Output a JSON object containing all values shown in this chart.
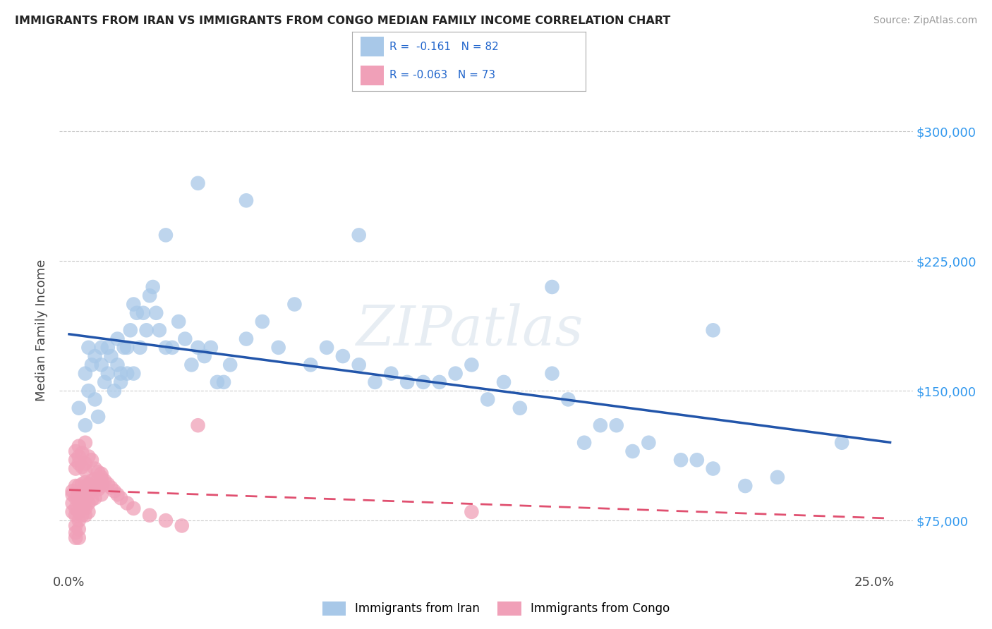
{
  "title": "IMMIGRANTS FROM IRAN VS IMMIGRANTS FROM CONGO MEDIAN FAMILY INCOME CORRELATION CHART",
  "source": "Source: ZipAtlas.com",
  "ylim": [
    45000,
    325000
  ],
  "xlim": [
    -0.003,
    0.262
  ],
  "iran_color": "#a8c8e8",
  "iran_edge": "#a8c8e8",
  "congo_color": "#f0a0b8",
  "congo_edge": "#f0a0b8",
  "iran_line_color": "#2255aa",
  "congo_line_color": "#e05070",
  "ylabel_ticks": [
    75000,
    150000,
    225000,
    300000
  ],
  "ylabel_labels": [
    "$75,000",
    "$150,000",
    "$225,000",
    "$300,000"
  ],
  "iran_scatter_x": [
    0.003,
    0.005,
    0.005,
    0.006,
    0.006,
    0.007,
    0.008,
    0.008,
    0.009,
    0.01,
    0.01,
    0.011,
    0.012,
    0.012,
    0.013,
    0.014,
    0.015,
    0.015,
    0.016,
    0.016,
    0.017,
    0.018,
    0.018,
    0.019,
    0.02,
    0.02,
    0.021,
    0.022,
    0.023,
    0.024,
    0.025,
    0.026,
    0.027,
    0.028,
    0.03,
    0.032,
    0.034,
    0.036,
    0.038,
    0.04,
    0.042,
    0.044,
    0.046,
    0.048,
    0.05,
    0.055,
    0.06,
    0.065,
    0.07,
    0.075,
    0.08,
    0.085,
    0.09,
    0.095,
    0.1,
    0.105,
    0.11,
    0.115,
    0.12,
    0.125,
    0.13,
    0.135,
    0.14,
    0.15,
    0.155,
    0.16,
    0.165,
    0.17,
    0.175,
    0.18,
    0.19,
    0.195,
    0.2,
    0.21,
    0.22,
    0.24,
    0.03,
    0.04,
    0.055,
    0.09,
    0.15,
    0.2
  ],
  "iran_scatter_y": [
    140000,
    160000,
    130000,
    175000,
    150000,
    165000,
    145000,
    170000,
    135000,
    165000,
    175000,
    155000,
    175000,
    160000,
    170000,
    150000,
    165000,
    180000,
    155000,
    160000,
    175000,
    160000,
    175000,
    185000,
    160000,
    200000,
    195000,
    175000,
    195000,
    185000,
    205000,
    210000,
    195000,
    185000,
    175000,
    175000,
    190000,
    180000,
    165000,
    175000,
    170000,
    175000,
    155000,
    155000,
    165000,
    180000,
    190000,
    175000,
    200000,
    165000,
    175000,
    170000,
    165000,
    155000,
    160000,
    155000,
    155000,
    155000,
    160000,
    165000,
    145000,
    155000,
    140000,
    160000,
    145000,
    120000,
    130000,
    130000,
    115000,
    120000,
    110000,
    110000,
    105000,
    95000,
    100000,
    120000,
    240000,
    270000,
    260000,
    240000,
    210000,
    185000
  ],
  "congo_scatter_x": [
    0.001,
    0.001,
    0.001,
    0.001,
    0.002,
    0.002,
    0.002,
    0.002,
    0.002,
    0.002,
    0.002,
    0.003,
    0.003,
    0.003,
    0.003,
    0.003,
    0.003,
    0.003,
    0.004,
    0.004,
    0.004,
    0.004,
    0.004,
    0.005,
    0.005,
    0.005,
    0.005,
    0.005,
    0.006,
    0.006,
    0.006,
    0.006,
    0.007,
    0.007,
    0.007,
    0.008,
    0.008,
    0.008,
    0.009,
    0.009,
    0.01,
    0.01,
    0.01,
    0.011,
    0.012,
    0.013,
    0.014,
    0.015,
    0.016,
    0.018,
    0.02,
    0.025,
    0.03,
    0.035,
    0.002,
    0.002,
    0.002,
    0.003,
    0.003,
    0.003,
    0.004,
    0.004,
    0.005,
    0.005,
    0.005,
    0.006,
    0.007,
    0.008,
    0.009,
    0.01,
    0.01,
    0.04,
    0.125
  ],
  "congo_scatter_y": [
    90000,
    85000,
    80000,
    92000,
    95000,
    88000,
    82000,
    78000,
    72000,
    68000,
    65000,
    95000,
    90000,
    86000,
    80000,
    75000,
    70000,
    65000,
    96000,
    92000,
    88000,
    82000,
    78000,
    97000,
    92000,
    87000,
    82000,
    78000,
    96000,
    90000,
    85000,
    80000,
    98000,
    93000,
    87000,
    99000,
    94000,
    88000,
    99000,
    93000,
    100000,
    95000,
    90000,
    98000,
    96000,
    94000,
    92000,
    90000,
    88000,
    85000,
    82000,
    78000,
    75000,
    72000,
    105000,
    110000,
    115000,
    108000,
    112000,
    118000,
    106000,
    114000,
    104000,
    108000,
    120000,
    112000,
    110000,
    105000,
    103000,
    102000,
    98000,
    130000,
    80000
  ]
}
